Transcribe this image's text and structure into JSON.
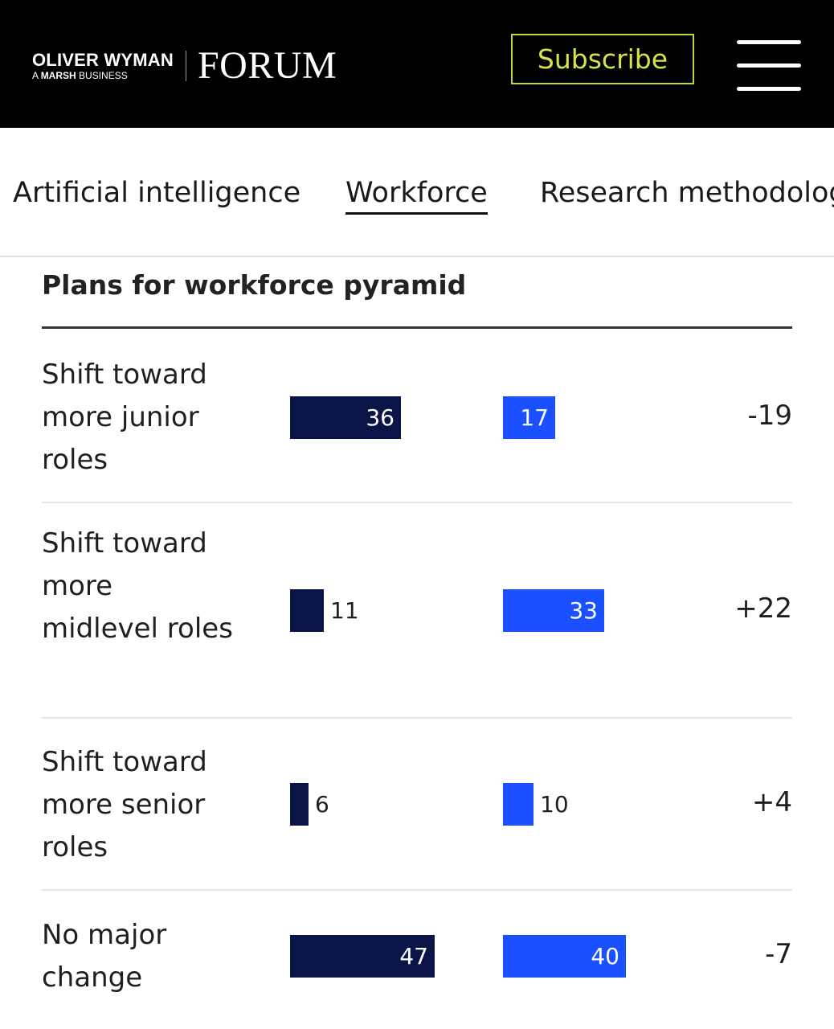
{
  "header": {
    "brand_main": "OLIVER WYMAN",
    "brand_sub_prefix": "A",
    "brand_sub_bold": "MARSH",
    "brand_sub_suffix": "BUSINESS",
    "brand_forum": "FORUM",
    "subscribe_label": "Subscribe",
    "menu_icon": "hamburger-menu-icon",
    "background": "#000000",
    "accent": "#c6d33a"
  },
  "tabs": [
    {
      "label": "Artificial intelligence",
      "active": false
    },
    {
      "label": "Workforce",
      "active": true
    },
    {
      "label": "Research methodolog",
      "active": false
    }
  ],
  "chart_data": {
    "type": "bar",
    "title": "Plans for workforce pyramid",
    "categories": [
      "Shift toward more junior roles",
      "Shift toward more midlevel roles",
      "Shift toward more senior roles",
      "No major change"
    ],
    "series": [
      {
        "values": [
          36,
          11,
          6,
          47
        ],
        "color": "#0a1446"
      },
      {
        "values": [
          17,
          33,
          10,
          40
        ],
        "color": "#1a50ff"
      }
    ],
    "difference": [
      "-19",
      "+22",
      "+4",
      "-7"
    ]
  }
}
